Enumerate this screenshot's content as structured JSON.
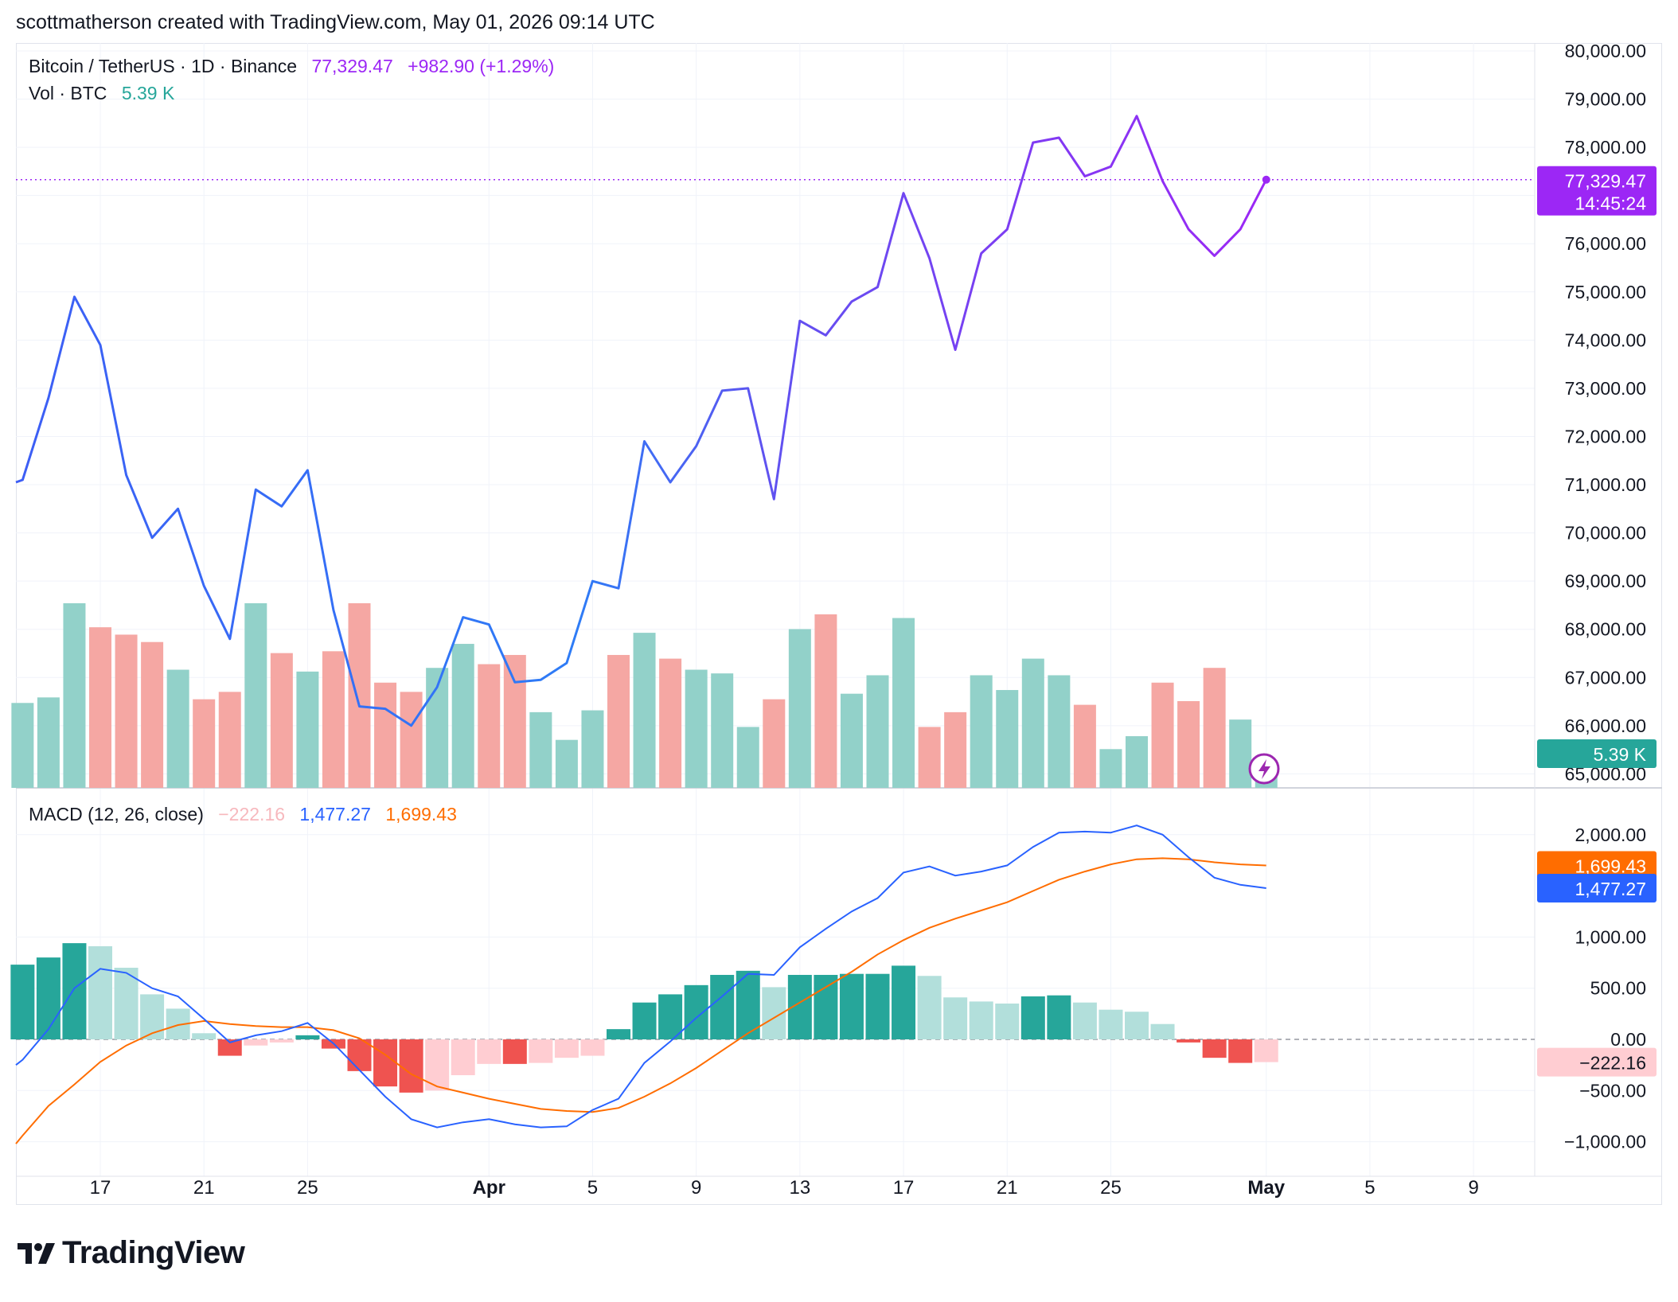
{
  "header": {
    "credit": "scottmatherson created with TradingView.com, May 01, 2026 09:14 UTC"
  },
  "legend": {
    "symbol": "Bitcoin / TetherUS · 1D · Binance",
    "price": "77,329.47",
    "change": "+982.90 (+1.29%)",
    "vol_label": "Vol · BTC",
    "vol_value": "5.39 K",
    "macd_label": "MACD (12, 26, close)",
    "macd_hist": "−222.16",
    "macd_line": "1,477.27",
    "macd_signal": "1,699.43"
  },
  "price_scale": {
    "ticks": [
      "80,000.00",
      "79,000.00",
      "78,000.00",
      "77,000.00",
      "76,000.00",
      "75,000.00",
      "74,000.00",
      "73,000.00",
      "72,000.00",
      "71,000.00",
      "70,000.00",
      "69,000.00",
      "68,000.00",
      "67,000.00",
      "66,000.00",
      "65,000.00"
    ],
    "last_price_label": "77,329.47",
    "countdown_label": "14:45:24",
    "vol_badge": "5.39 K"
  },
  "macd_scale": {
    "ticks": [
      "2,000.00",
      "1,000.00",
      "500.00",
      "0.00",
      "−500.00",
      "−1,000.00"
    ],
    "signal_badge": "1,699.43",
    "macd_badge": "1,477.27",
    "hist_badge": "−222.16"
  },
  "time_axis": {
    "labels": [
      {
        "text": "17",
        "bold": false,
        "day": 17
      },
      {
        "text": "21",
        "bold": false,
        "day": 21
      },
      {
        "text": "25",
        "bold": false,
        "day": 25
      },
      {
        "text": "Apr",
        "bold": true,
        "day": 32
      },
      {
        "text": "5",
        "bold": false,
        "day": 36
      },
      {
        "text": "9",
        "bold": false,
        "day": 40
      },
      {
        "text": "13",
        "bold": false,
        "day": 44
      },
      {
        "text": "17",
        "bold": false,
        "day": 48
      },
      {
        "text": "21",
        "bold": false,
        "day": 52
      },
      {
        "text": "25",
        "bold": false,
        "day": 56
      },
      {
        "text": "May",
        "bold": true,
        "day": 62
      },
      {
        "text": "5",
        "bold": false,
        "day": 66
      },
      {
        "text": "9",
        "bold": false,
        "day": 70
      }
    ]
  },
  "colors": {
    "up_vol": "#92d1c9",
    "down_vol": "#f5a7a3",
    "hist_up_strong": "#26a69a",
    "hist_up_weak": "#b2dfdb",
    "hist_down_strong": "#ef5350",
    "hist_down_weak": "#ffcdd2",
    "macd_line": "#2962ff",
    "signal_line": "#ff6d00",
    "price_blue": "#2e7cf6",
    "price_purple": "#9c27f5"
  },
  "brand": {
    "logo_text": "TradingView"
  },
  "chart_data": {
    "type": "line",
    "title": "Bitcoin / TetherUS · 1D · Binance",
    "x_unit": "day (1 = Mar 1, 2026)",
    "x": [
      14,
      15,
      16,
      17,
      18,
      19,
      20,
      21,
      22,
      23,
      24,
      25,
      26,
      27,
      28,
      29,
      30,
      31,
      32,
      33,
      34,
      35,
      36,
      37,
      38,
      39,
      40,
      41,
      42,
      43,
      44,
      45,
      46,
      47,
      48,
      49,
      50,
      51,
      52,
      53,
      54,
      55,
      56,
      57,
      58,
      59,
      60,
      61,
      62
    ],
    "price_close": [
      71100,
      72800,
      74900,
      73900,
      71200,
      69900,
      70500,
      68900,
      67800,
      70900,
      70550,
      71300,
      68400,
      66400,
      66350,
      66000,
      66800,
      68250,
      68100,
      66900,
      66950,
      67300,
      69000,
      68850,
      71900,
      71050,
      71800,
      72950,
      73000,
      70700,
      74400,
      74100,
      74800,
      75100,
      77050,
      75700,
      73800,
      75800,
      76300,
      78100,
      78200,
      77400,
      77600,
      78650,
      77300,
      76300,
      75750,
      76300,
      77329.47
    ],
    "volume_dir": [
      "up",
      "up",
      "up",
      "down",
      "down",
      "down",
      "up",
      "down",
      "down",
      "up",
      "down",
      "up",
      "down",
      "down",
      "down",
      "down",
      "up",
      "up",
      "down",
      "down",
      "up",
      "up",
      "up",
      "down",
      "up",
      "down",
      "up",
      "up",
      "up",
      "down",
      "up",
      "down",
      "up",
      "up",
      "up",
      "down",
      "down",
      "up",
      "up",
      "up",
      "up",
      "down",
      "up",
      "up",
      "down",
      "down",
      "down",
      "up",
      "up"
    ],
    "volume_rel": [
      0.46,
      0.49,
      1.0,
      0.87,
      0.83,
      0.79,
      0.64,
      0.48,
      0.52,
      1.0,
      0.73,
      0.63,
      0.74,
      1.0,
      0.57,
      0.52,
      0.65,
      0.78,
      0.67,
      0.72,
      0.41,
      0.26,
      0.42,
      0.72,
      0.84,
      0.7,
      0.64,
      0.62,
      0.33,
      0.48,
      0.86,
      0.94,
      0.51,
      0.61,
      0.92,
      0.33,
      0.41,
      0.61,
      0.53,
      0.7,
      0.61,
      0.45,
      0.21,
      0.28,
      0.57,
      0.47,
      0.65,
      0.37,
      0.06
    ],
    "macd_line": [
      -200,
      100,
      500,
      690,
      650,
      500,
      420,
      200,
      -30,
      40,
      80,
      160,
      -40,
      -300,
      -560,
      -780,
      -860,
      -810,
      -780,
      -830,
      -860,
      -850,
      -690,
      -580,
      -230,
      -20,
      210,
      420,
      640,
      630,
      900,
      1080,
      1250,
      1380,
      1630,
      1690,
      1600,
      1640,
      1700,
      1880,
      2020,
      2030,
      2020,
      2090,
      2000,
      1780,
      1580,
      1510,
      1477.27
    ],
    "signal_line": [
      -940,
      -650,
      -440,
      -220,
      -60,
      60,
      140,
      180,
      150,
      130,
      120,
      120,
      90,
      10,
      -150,
      -340,
      -460,
      -520,
      -580,
      -630,
      -680,
      -700,
      -710,
      -670,
      -560,
      -430,
      -280,
      -110,
      60,
      210,
      360,
      510,
      660,
      830,
      970,
      1090,
      1180,
      1260,
      1340,
      1450,
      1560,
      1640,
      1710,
      1760,
      1770,
      1760,
      1730,
      1710,
      1699.43
    ],
    "macd_hist": [
      730,
      800,
      940,
      910,
      700,
      440,
      300,
      60,
      -160,
      -60,
      -30,
      40,
      -90,
      -310,
      -460,
      -520,
      -500,
      -350,
      -240,
      -240,
      -230,
      -180,
      -160,
      100,
      360,
      440,
      530,
      630,
      670,
      510,
      630,
      630,
      640,
      640,
      720,
      620,
      410,
      370,
      350,
      420,
      430,
      360,
      290,
      270,
      150,
      -30,
      -180,
      -230,
      -222.16
    ],
    "ylim_price": [
      64700,
      80200
    ],
    "ylim_macd": [
      -1100,
      2200
    ],
    "volume_current": "5.39 K"
  }
}
